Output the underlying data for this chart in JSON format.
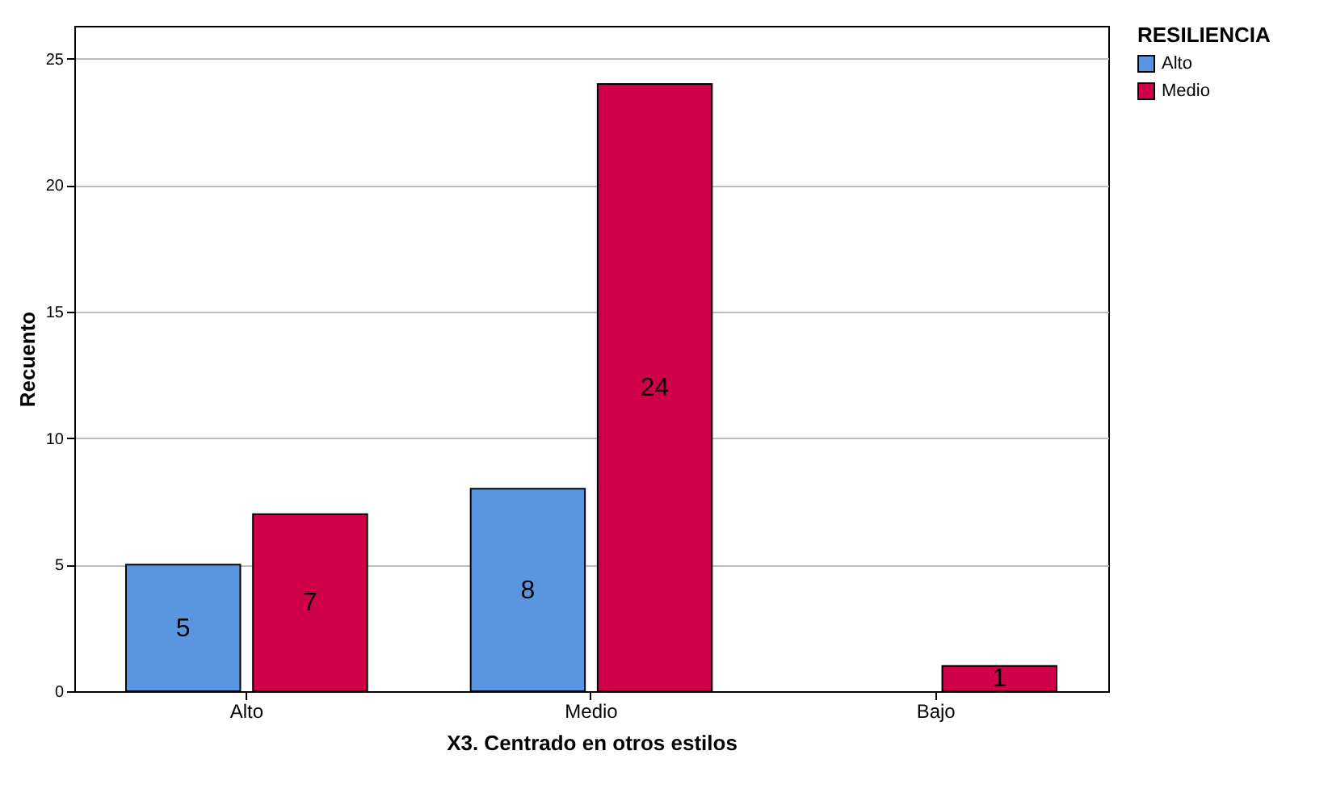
{
  "chart_data": {
    "type": "bar",
    "xlabel": "X3. Centrado en otros estilos",
    "ylabel": "Recuento",
    "legend_title": "RESILIENCIA",
    "categories": [
      "Alto",
      "Medio",
      "Bajo"
    ],
    "series": [
      {
        "name": "Alto",
        "color": "#5a96e0",
        "values": [
          5,
          8,
          null
        ]
      },
      {
        "name": "Medio",
        "color": "#d1004a",
        "values": [
          7,
          24,
          1
        ]
      }
    ],
    "ylim": [
      0,
      26.3
    ],
    "yticks": [
      0,
      5,
      10,
      15,
      20,
      25
    ],
    "grid": "y",
    "legend": "top right",
    "data_labels": true
  }
}
